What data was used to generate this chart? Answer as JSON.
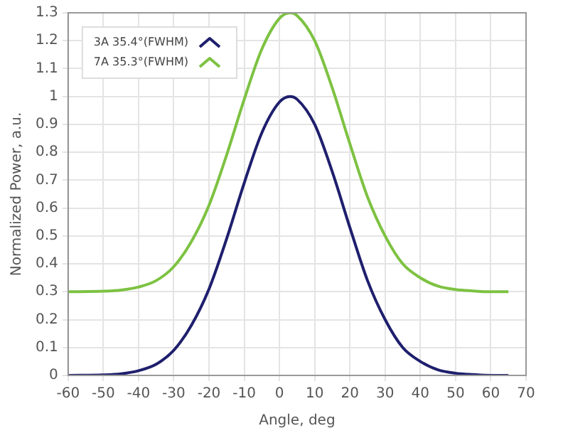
{
  "chart_data": {
    "type": "line",
    "xlabel": "Angle, deg",
    "ylabel": "Normalized Power, a.u.",
    "x": [
      -60,
      -50,
      -45,
      -40,
      -35,
      -30,
      -25,
      -20,
      -15,
      -10,
      -5,
      0,
      3,
      5,
      10,
      15,
      20,
      25,
      30,
      35,
      40,
      45,
      50,
      55,
      60,
      65
    ],
    "series": [
      {
        "name": "3A 35.4°(FWHM)",
        "color": "#1f1f6e",
        "values": [
          0,
          0.002,
          0.006,
          0.017,
          0.04,
          0.09,
          0.18,
          0.31,
          0.49,
          0.69,
          0.87,
          0.98,
          1,
          0.99,
          0.9,
          0.73,
          0.53,
          0.34,
          0.2,
          0.1,
          0.05,
          0.02,
          0.008,
          0.003,
          0,
          0
        ]
      },
      {
        "name": "7A 35.3°(FWHM)",
        "color": "#7dc242",
        "values": [
          0.3,
          0.302,
          0.306,
          0.317,
          0.34,
          0.39,
          0.48,
          0.61,
          0.79,
          0.99,
          1.17,
          1.28,
          1.3,
          1.29,
          1.2,
          1.03,
          0.83,
          0.64,
          0.5,
          0.4,
          0.35,
          0.32,
          0.308,
          0.303,
          0.3,
          0.3
        ]
      }
    ],
    "xlim": [
      -60,
      70
    ],
    "xticks": [
      -60,
      -50,
      -40,
      -30,
      -20,
      -10,
      0,
      10,
      20,
      30,
      40,
      50,
      60,
      70
    ],
    "ylim": [
      0,
      1.3
    ],
    "yticks": [
      0,
      0.1,
      0.2,
      0.3,
      0.4,
      0.5,
      0.6,
      0.7,
      0.8,
      0.9,
      1,
      1.1,
      1.2,
      1.3
    ],
    "grid": true,
    "legend": "top left",
    "marker": "none",
    "line_style": "solid"
  }
}
